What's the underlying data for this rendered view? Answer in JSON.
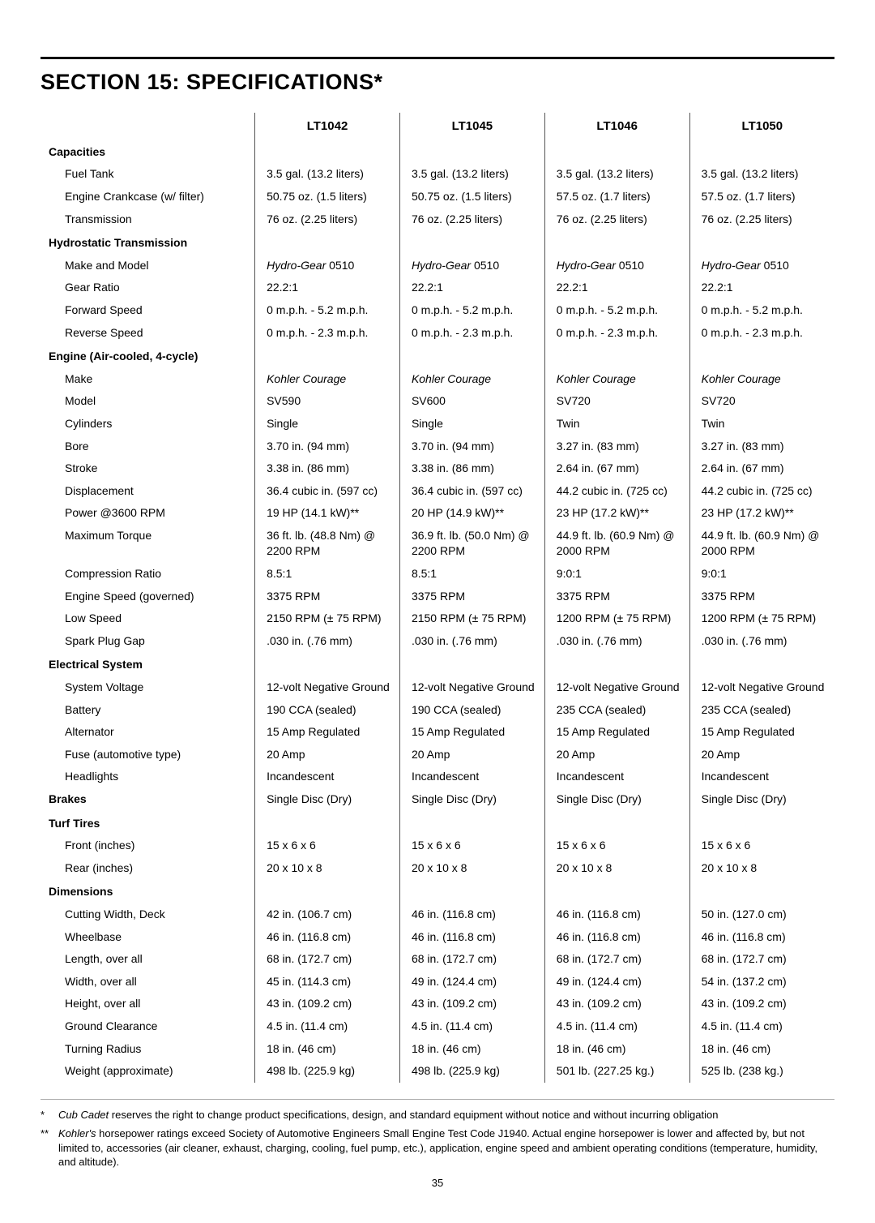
{
  "title": "SECTION 15: SPECIFICATIONS*",
  "model_headers": [
    "LT1042",
    "LT1045",
    "LT1046",
    "LT1050"
  ],
  "sections": [
    {
      "name": "Capacities",
      "rows": [
        {
          "label": "Fuel Tank",
          "values": [
            "3.5 gal. (13.2 liters)",
            "3.5 gal. (13.2 liters)",
            "3.5 gal. (13.2 liters)",
            "3.5 gal. (13.2 liters)"
          ]
        },
        {
          "label": "Engine Crankcase (w/ filter)",
          "values": [
            "50.75 oz. (1.5 liters)",
            "50.75 oz. (1.5 liters)",
            "57.5 oz. (1.7 liters)",
            "57.5 oz. (1.7 liters)"
          ]
        },
        {
          "label": "Transmission",
          "values": [
            "76 oz. (2.25 liters)",
            "76 oz. (2.25 liters)",
            "76 oz. (2.25 liters)",
            "76 oz. (2.25 liters)"
          ]
        }
      ]
    },
    {
      "name": "Hydrostatic Transmission",
      "rows": [
        {
          "label": "Make and Model",
          "italicPrefix": "Hydro-Gear",
          "values": [
            " 0510",
            " 0510",
            " 0510",
            " 0510"
          ]
        },
        {
          "label": "Gear Ratio",
          "values": [
            "22.2:1",
            "22.2:1",
            "22.2:1",
            "22.2:1"
          ]
        },
        {
          "label": "Forward Speed",
          "values": [
            "0 m.p.h. - 5.2 m.p.h.",
            "0 m.p.h. - 5.2 m.p.h.",
            "0 m.p.h. - 5.2 m.p.h.",
            "0 m.p.h. - 5.2 m.p.h."
          ]
        },
        {
          "label": "Reverse Speed",
          "values": [
            "0 m.p.h. - 2.3 m.p.h.",
            "0 m.p.h. - 2.3 m.p.h.",
            "0 m.p.h. - 2.3 m.p.h.",
            "0 m.p.h. - 2.3 m.p.h."
          ]
        }
      ]
    },
    {
      "name": "Engine (Air-cooled, 4-cycle)",
      "rows": [
        {
          "label": "Make",
          "italic": true,
          "values": [
            "Kohler Courage",
            "Kohler Courage",
            "Kohler Courage",
            "Kohler Courage"
          ]
        },
        {
          "label": "Model",
          "values": [
            "SV590",
            "SV600",
            "SV720",
            "SV720"
          ]
        },
        {
          "label": "Cylinders",
          "values": [
            "Single",
            "Single",
            "Twin",
            "Twin"
          ]
        },
        {
          "label": "Bore",
          "values": [
            "3.70 in. (94 mm)",
            "3.70 in. (94 mm)",
            "3.27 in. (83 mm)",
            "3.27 in. (83 mm)"
          ]
        },
        {
          "label": "Stroke",
          "values": [
            "3.38 in. (86 mm)",
            "3.38 in. (86 mm)",
            "2.64 in. (67 mm)",
            "2.64 in. (67 mm)"
          ]
        },
        {
          "label": "Displacement",
          "values": [
            "36.4 cubic in. (597 cc)",
            "36.4 cubic in. (597 cc)",
            "44.2 cubic in. (725 cc)",
            "44.2 cubic in. (725 cc)"
          ]
        },
        {
          "label": "Power @3600 RPM",
          "values": [
            "19 HP (14.1 kW)**",
            "20 HP (14.9 kW)**",
            "23 HP (17.2 kW)**",
            "23 HP (17.2 kW)**"
          ]
        },
        {
          "label": "Maximum Torque",
          "values": [
            "36 ft. lb. (48.8 Nm) @ 2200 RPM",
            "36.9 ft. lb. (50.0 Nm) @ 2200 RPM",
            "44.9 ft. lb. (60.9 Nm) @ 2000 RPM",
            "44.9 ft. lb. (60.9 Nm) @ 2000 RPM"
          ]
        },
        {
          "label": "Compression Ratio",
          "values": [
            "8.5:1",
            "8.5:1",
            "9:0:1",
            "9:0:1"
          ]
        },
        {
          "label": "Engine Speed (governed)",
          "values": [
            "3375 RPM",
            "3375 RPM",
            "3375 RPM",
            "3375 RPM"
          ]
        },
        {
          "label": "Low Speed",
          "values": [
            "2150 RPM (± 75 RPM)",
            "2150 RPM (± 75 RPM)",
            "1200 RPM (± 75 RPM)",
            "1200 RPM (± 75 RPM)"
          ]
        },
        {
          "label": "Spark Plug Gap",
          "values": [
            ".030 in. (.76 mm)",
            ".030 in. (.76 mm)",
            ".030 in. (.76 mm)",
            ".030 in. (.76 mm)"
          ]
        }
      ]
    },
    {
      "name": "Electrical System",
      "rows": [
        {
          "label": "System Voltage",
          "values": [
            "12-volt Negative Ground",
            "12-volt Negative Ground",
            "12-volt Negative Ground",
            "12-volt Negative Ground"
          ]
        },
        {
          "label": "Battery",
          "values": [
            "190 CCA (sealed)",
            "190 CCA (sealed)",
            "235 CCA (sealed)",
            "235 CCA (sealed)"
          ]
        },
        {
          "label": "Alternator",
          "values": [
            "15 Amp Regulated",
            "15 Amp Regulated",
            "15 Amp Regulated",
            "15 Amp Regulated"
          ]
        },
        {
          "label": "Fuse (automotive type)",
          "values": [
            "20 Amp",
            "20 Amp",
            "20 Amp",
            "20 Amp"
          ]
        },
        {
          "label": "Headlights",
          "values": [
            "Incandescent",
            "Incandescent",
            "Incandescent",
            "Incandescent"
          ]
        }
      ]
    },
    {
      "name": "Brakes",
      "inline": true,
      "rows": [
        {
          "label": "Brakes",
          "values": [
            "Single Disc (Dry)",
            "Single Disc (Dry)",
            "Single Disc (Dry)",
            "Single Disc (Dry)"
          ]
        }
      ]
    },
    {
      "name": "Turf Tires",
      "rows": [
        {
          "label": "Front (inches)",
          "values": [
            "15 x 6 x 6",
            "15 x 6 x 6",
            "15 x 6 x 6",
            "15 x 6 x 6"
          ]
        },
        {
          "label": "Rear (inches)",
          "values": [
            "20 x 10 x 8",
            "20 x 10 x 8",
            "20 x 10 x 8",
            "20 x 10 x 8"
          ]
        }
      ]
    },
    {
      "name": "Dimensions",
      "rows": [
        {
          "label": "Cutting Width, Deck",
          "values": [
            "42 in. (106.7 cm)",
            "46 in. (116.8 cm)",
            "46 in. (116.8 cm)",
            "50 in. (127.0 cm)"
          ]
        },
        {
          "label": "Wheelbase",
          "values": [
            "46 in. (116.8 cm)",
            "46 in. (116.8 cm)",
            "46 in. (116.8 cm)",
            "46 in. (116.8 cm)"
          ]
        },
        {
          "label": "Length, over all",
          "values": [
            "68 in. (172.7 cm)",
            "68 in. (172.7 cm)",
            "68 in. (172.7 cm)",
            "68 in. (172.7 cm)"
          ]
        },
        {
          "label": "Width, over all",
          "values": [
            "45 in. (114.3 cm)",
            "49 in. (124.4 cm)",
            "49 in. (124.4 cm)",
            "54 in. (137.2 cm)"
          ]
        },
        {
          "label": "Height, over all",
          "values": [
            "43 in. (109.2 cm)",
            "43 in. (109.2 cm)",
            "43 in. (109.2 cm)",
            "43 in. (109.2 cm)"
          ]
        },
        {
          "label": "Ground Clearance",
          "values": [
            "4.5 in. (11.4 cm)",
            "4.5 in. (11.4 cm)",
            "4.5 in. (11.4 cm)",
            "4.5 in. (11.4 cm)"
          ]
        },
        {
          "label": "Turning Radius",
          "values": [
            "18 in. (46 cm)",
            "18 in. (46 cm)",
            "18 in. (46 cm)",
            "18 in. (46 cm)"
          ]
        },
        {
          "label": "Weight (approximate)",
          "values": [
            "498 lb. (225.9 kg)",
            "498 lb. (225.9 kg)",
            "501 lb. (227.25 kg.)",
            "525 lb. (238 kg.)"
          ]
        }
      ]
    }
  ],
  "footnotes": [
    {
      "mark": "*",
      "italicPrefix": "Cub Cadet",
      "text": " reserves the right to change product specifications, design, and standard equipment without notice and without incurring obligation"
    },
    {
      "mark": "**",
      "italicPrefix": "Kohler's",
      "text": " horsepower ratings exceed Society of Automotive Engineers Small Engine Test Code J1940. Actual engine horsepower is lower and affected by, but not limited to, accessories (air cleaner, exhaust, charging, cooling, fuel pump, etc.), application, engine speed and ambient operating conditions (temperature, humidity, and altitude)."
    }
  ],
  "page_number": "35"
}
